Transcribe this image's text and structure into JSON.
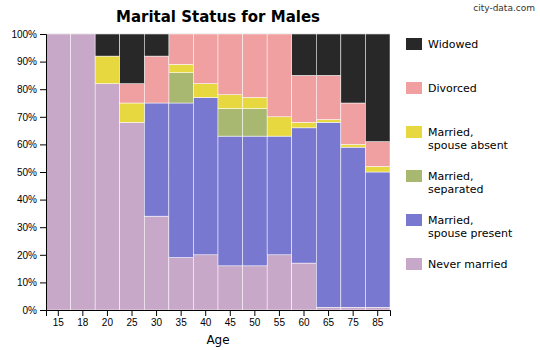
{
  "chart_data": {
    "type": "bar",
    "title": "Marital Status for Males",
    "x_label": "Age",
    "categories": [
      "15",
      "18",
      "20",
      "25",
      "30",
      "35",
      "40",
      "45",
      "50",
      "55",
      "60",
      "65",
      "75",
      "85"
    ],
    "series": [
      {
        "name": "Never married",
        "color": "#c8a8c8",
        "values": [
          100,
          100,
          82,
          68,
          34,
          19,
          20,
          16,
          16,
          20,
          17,
          1,
          1,
          1
        ]
      },
      {
        "name": "Married,\nspouse present",
        "color": "#7878d0",
        "values": [
          0,
          0,
          0,
          0,
          41,
          56,
          57,
          47,
          47,
          43,
          49,
          67,
          58,
          49
        ]
      },
      {
        "name": "Married,\nseparated",
        "color": "#a8b870",
        "values": [
          0,
          0,
          0,
          0,
          0,
          11,
          0,
          10,
          10,
          0,
          0,
          0,
          0,
          0
        ]
      },
      {
        "name": "Married,\nspouse absent",
        "color": "#e8d840",
        "values": [
          0,
          0,
          10,
          7,
          0,
          3,
          5,
          5,
          4,
          7,
          2,
          1,
          1,
          2
        ]
      },
      {
        "name": "Divorced",
        "color": "#f0a0a0",
        "values": [
          0,
          0,
          0,
          7,
          17,
          11,
          18,
          22,
          23,
          30,
          17,
          16,
          15,
          9
        ]
      },
      {
        "name": "Widowed",
        "color": "#282828",
        "values": [
          0,
          0,
          8,
          18,
          8,
          0,
          0,
          0,
          0,
          0,
          15,
          15,
          25,
          39
        ]
      }
    ],
    "stacked": true,
    "ylim": [
      0,
      100
    ],
    "yticks": [
      {
        "value": 0,
        "label": "0%"
      },
      {
        "value": 10,
        "label": "10%"
      },
      {
        "value": 20,
        "label": "20%"
      },
      {
        "value": 30,
        "label": "30%"
      },
      {
        "value": 40,
        "label": "40%"
      },
      {
        "value": 50,
        "label": "50%"
      },
      {
        "value": 60,
        "label": "60%"
      },
      {
        "value": 70,
        "label": "70%"
      },
      {
        "value": 80,
        "label": "80%"
      },
      {
        "value": 90,
        "label": "90%"
      },
      {
        "value": 100,
        "label": "100%"
      }
    ],
    "grid": true,
    "legend": "right",
    "annotations": [
      "city-data.com"
    ]
  }
}
